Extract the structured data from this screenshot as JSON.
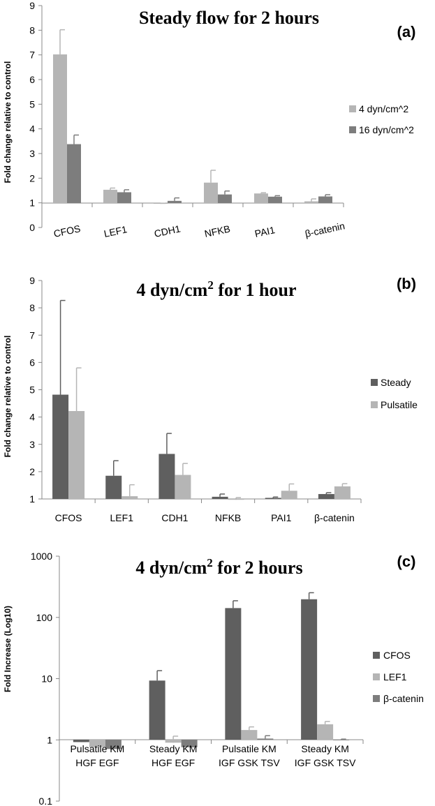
{
  "colors": {
    "dark": "#5f5f5f",
    "light": "#b5b5b5",
    "mid": "#7d7d7d"
  },
  "chart_data": [
    {
      "type": "bar",
      "panel": "(a)",
      "title": "Steady flow for 2 hours",
      "ylabel": "Fold change relative to control",
      "ylim": [
        0,
        9
      ],
      "yticks": [
        "0",
        "1",
        "2",
        "3",
        "4",
        "5",
        "6",
        "7",
        "8",
        "9"
      ],
      "categories": [
        "CFOS",
        "LEF1",
        "CDH1",
        "NFKB",
        "PAI1",
        "β-catenin"
      ],
      "series": [
        {
          "name": "4 dyn/cm^2",
          "color": "#b5b5b5",
          "values": [
            7.02,
            1.53,
            0.96,
            1.82,
            1.38,
            1.06
          ],
          "errors": [
            1.0,
            0.07,
            0.02,
            0.5,
            0.03,
            0.1
          ]
        },
        {
          "name": "16 dyn/cm^2",
          "color": "#7d7d7d",
          "values": [
            3.38,
            1.43,
            1.08,
            1.34,
            1.25,
            1.26
          ],
          "errors": [
            0.37,
            0.1,
            0.12,
            0.14,
            0.04,
            0.07
          ]
        }
      ],
      "legend": "right"
    },
    {
      "type": "bar",
      "panel": "(b)",
      "title_main": "4 dyn/cm",
      "title_sup": "2",
      "title_tail": " for 1 hour",
      "ylabel": "Fold change relative to control",
      "ylim": [
        1,
        9
      ],
      "yticks": [
        "1",
        "2",
        "3",
        "4",
        "5",
        "6",
        "7",
        "8",
        "9"
      ],
      "categories": [
        "CFOS",
        "LEF1",
        "CDH1",
        "NFKB",
        "PAI1",
        "β-catenin"
      ],
      "series": [
        {
          "name": "Steady",
          "color": "#5f5f5f",
          "values": [
            4.82,
            1.85,
            2.65,
            1.08,
            1.04,
            1.18
          ],
          "errors": [
            3.45,
            0.55,
            0.75,
            0.1,
            0.03,
            0.05
          ]
        },
        {
          "name": "Pulsatile",
          "color": "#b5b5b5",
          "values": [
            4.22,
            1.1,
            1.88,
            0.97,
            1.3,
            1.46
          ],
          "errors": [
            1.58,
            0.42,
            0.42,
            0.08,
            0.25,
            0.1
          ]
        }
      ],
      "legend": "right"
    },
    {
      "type": "bar",
      "panel": "(c)",
      "title_main": "4 dyn/cm",
      "title_sup": "2",
      "title_tail": " for 2 hours",
      "ylabel": "Fold Increase (Log10)",
      "yscale": "log",
      "ylim": [
        0.1,
        1000
      ],
      "yticks": [
        "0.1",
        "1",
        "10",
        "100",
        "1000"
      ],
      "categories": [
        [
          "Pulsatile KM",
          "HGF EGF"
        ],
        [
          "Steady KM",
          "HGF EGF"
        ],
        [
          "Pulsatile KM",
          "IGF GSK TSV"
        ],
        [
          "Steady KM",
          "IGF GSK TSV"
        ]
      ],
      "series": [
        {
          "name": "CFOS",
          "color": "#5f5f5f",
          "values": [
            0.92,
            9.3,
            142,
            198
          ],
          "errors": [
            0.02,
            4.2,
            45,
            55
          ]
        },
        {
          "name": "LEF1",
          "color": "#b5b5b5",
          "values": [
            0.76,
            0.9,
            1.45,
            1.8
          ],
          "errors": [
            0.02,
            0.25,
            0.18,
            0.2
          ]
        },
        {
          "name": "β-catenin",
          "color": "#7d7d7d",
          "values": [
            0.71,
            0.76,
            1.05,
            1.0
          ],
          "errors": [
            0.02,
            0.01,
            0.12,
            0.03
          ]
        }
      ],
      "legend": "right"
    }
  ]
}
